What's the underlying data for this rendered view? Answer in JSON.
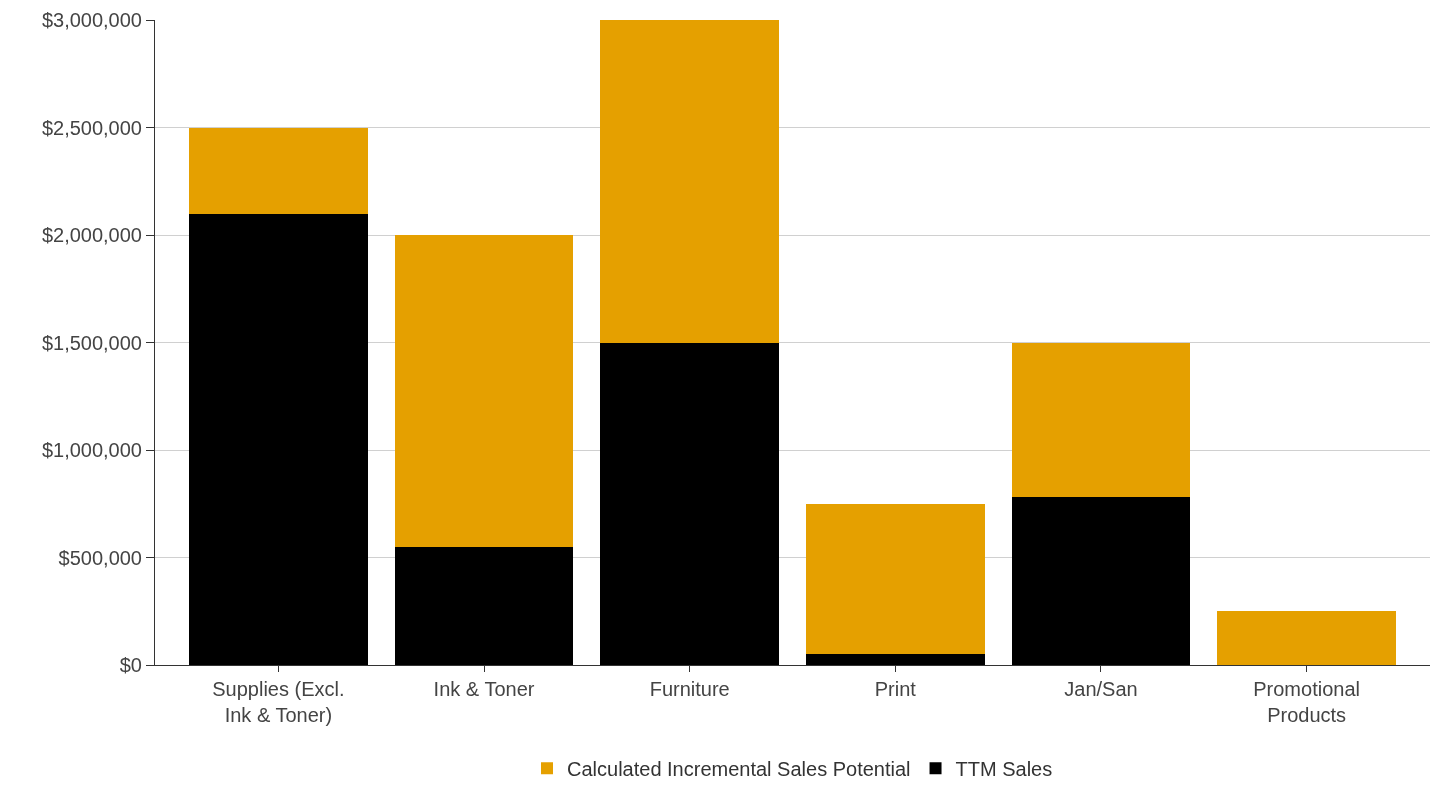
{
  "chart_data": {
    "type": "bar",
    "stacked": true,
    "categories": [
      "Supplies (Excl.\nInk & Toner)",
      "Ink & Toner",
      "Furniture",
      "Print",
      "Jan/San",
      "Promotional\nProducts"
    ],
    "series": [
      {
        "name": "TTM Sales",
        "color": "#000000",
        "values": [
          2100000,
          550000,
          1500000,
          50000,
          780000,
          0
        ]
      },
      {
        "name": "Calculated Incremental Sales Potential",
        "color": "#e5a000",
        "values": [
          400000,
          1450000,
          1500000,
          700000,
          720000,
          250000
        ]
      }
    ],
    "ylim": [
      0,
      3000000
    ],
    "yticks": [
      {
        "value": 0,
        "label": "$0"
      },
      {
        "value": 500000,
        "label": "$500,000"
      },
      {
        "value": 1000000,
        "label": "$1,000,000"
      },
      {
        "value": 1500000,
        "label": "$1,500,000"
      },
      {
        "value": 2000000,
        "label": "$2,000,000"
      },
      {
        "value": 2500000,
        "label": "$2,500,000"
      },
      {
        "value": 3000000,
        "label": "$3,000,000"
      }
    ],
    "grid": "y",
    "legend": "bottom"
  }
}
